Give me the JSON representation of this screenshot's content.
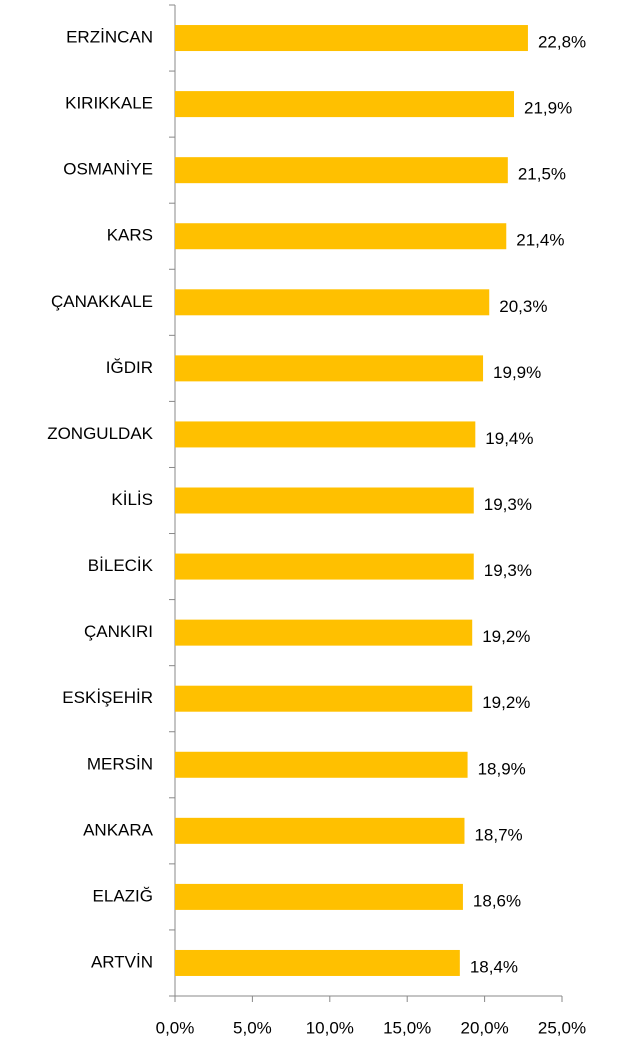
{
  "chart_data": {
    "type": "bar",
    "categories": [
      "ERZİNCAN",
      "KIRIKKALE",
      "OSMANİYE",
      "KARS",
      "ÇANAKKALE",
      "IĞDIR",
      "ZONGULDAK",
      "KİLİS",
      "BİLECİK",
      "ÇANKIRI",
      "ESKİŞEHİR",
      "MERSİN",
      "ANKARA",
      "ELAZIĞ",
      "ARTVİN"
    ],
    "values": [
      22.8,
      21.9,
      21.5,
      21.4,
      20.3,
      19.9,
      19.4,
      19.3,
      19.3,
      19.2,
      19.2,
      18.9,
      18.7,
      18.6,
      18.4
    ],
    "value_labels": [
      "22,8%",
      "21,9%",
      "21,5%",
      "21,4%",
      "20,3%",
      "19,9%",
      "19,4%",
      "19,3%",
      "19,3%",
      "19,2%",
      "19,2%",
      "18,9%",
      "18,7%",
      "18,6%",
      "18,4%"
    ],
    "color": "#ffc000",
    "xlim": [
      0,
      25
    ],
    "xticks": [
      {
        "value": 0,
        "label": "0,0%"
      },
      {
        "value": 5,
        "label": "5,0%"
      },
      {
        "value": 10,
        "label": "10,0%"
      },
      {
        "value": 15,
        "label": "15,0%"
      },
      {
        "value": 20,
        "label": "20,0%"
      },
      {
        "value": 25,
        "label": "25,0%"
      }
    ]
  }
}
